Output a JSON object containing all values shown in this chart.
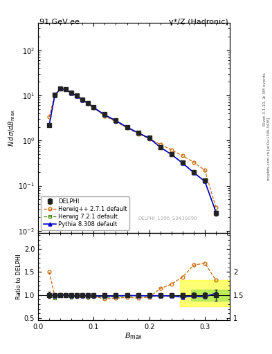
{
  "title_left": "91 GeV ee",
  "title_right": "γ*/Z (Hadronic)",
  "ylabel_main": "$N\\,d\\sigma/dB_{\\rm max}$",
  "ylabel_ratio": "Ratio to DELPHI",
  "xlabel": "$B_{\\rm max}$",
  "watermark": "DELPHI_1996_S3430090",
  "right_label_top": "Rivet 3.1.10, ≥ 3M events",
  "right_label_bot": "mcplots.cern.ch [arXiv:1306.3436]",
  "bmax": [
    0.02,
    0.03,
    0.04,
    0.05,
    0.06,
    0.07,
    0.08,
    0.09,
    0.1,
    0.12,
    0.14,
    0.16,
    0.18,
    0.2,
    0.22,
    0.24,
    0.26,
    0.28,
    0.3,
    0.32
  ],
  "delphi": [
    2.2,
    10.2,
    14.0,
    13.5,
    11.5,
    9.8,
    8.0,
    6.8,
    5.5,
    3.8,
    2.8,
    2.0,
    1.5,
    1.15,
    0.72,
    0.5,
    0.33,
    0.2,
    0.13,
    0.025
  ],
  "delphi_err": [
    0.15,
    0.4,
    0.5,
    0.5,
    0.4,
    0.35,
    0.3,
    0.25,
    0.2,
    0.15,
    0.1,
    0.08,
    0.06,
    0.05,
    0.03,
    0.02,
    0.015,
    0.01,
    0.008,
    0.003
  ],
  "herwig271": [
    3.3,
    10.0,
    14.2,
    13.5,
    11.5,
    9.5,
    7.8,
    6.5,
    5.3,
    3.5,
    2.6,
    1.9,
    1.4,
    1.1,
    0.82,
    0.62,
    0.46,
    0.33,
    0.22,
    0.033
  ],
  "herwig721": [
    2.2,
    9.5,
    14.0,
    13.5,
    11.0,
    9.5,
    7.8,
    6.5,
    5.3,
    3.6,
    2.7,
    1.95,
    1.48,
    1.12,
    0.7,
    0.49,
    0.32,
    0.195,
    0.125,
    0.026
  ],
  "pythia": [
    2.2,
    10.0,
    14.0,
    13.5,
    11.2,
    9.6,
    7.9,
    6.7,
    5.4,
    3.7,
    2.75,
    1.98,
    1.48,
    1.13,
    0.71,
    0.49,
    0.315,
    0.195,
    0.125,
    0.026
  ],
  "delphi_color": "#222222",
  "herwig271_color": "#cc6600",
  "herwig721_color": "#448800",
  "pythia_color": "#0000cc",
  "ylim_main": [
    0.009,
    400
  ],
  "ylim_ratio": [
    0.45,
    2.35
  ],
  "xlim": [
    0.0,
    0.345
  ]
}
